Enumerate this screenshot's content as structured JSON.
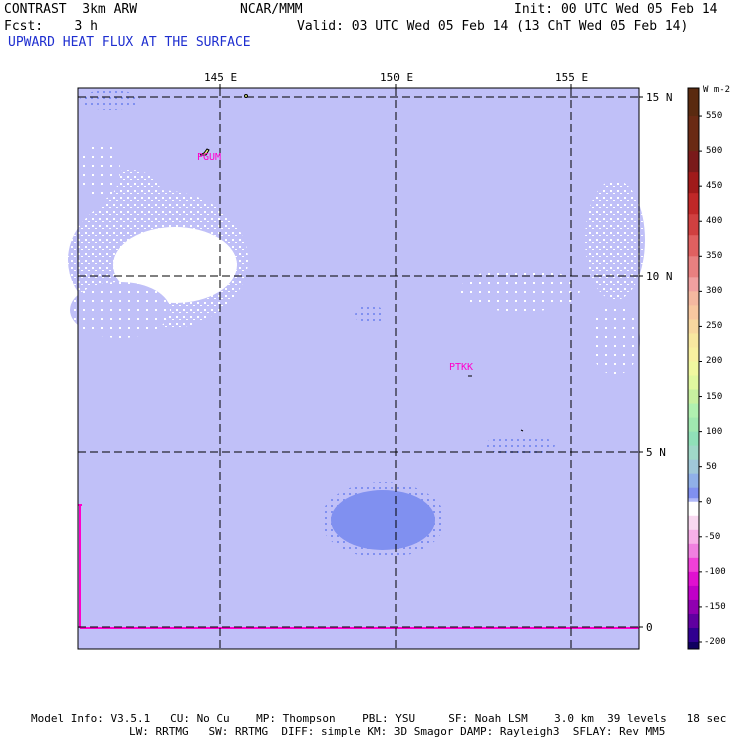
{
  "header": {
    "model": "CONTRAST  3km ARW",
    "center": "NCAR/MMM",
    "init": "Init: 00 UTC Wed 05 Feb 14",
    "fcst": "Fcst:    3 h",
    "valid": "Valid: 03 UTC Wed 05 Feb 14 (13 ChT Wed 05 Feb 14)",
    "field_title": "UPWARD HEAT FLUX AT THE SURFACE"
  },
  "map": {
    "lon_labels": [
      "145 E",
      "150 E",
      "155 E"
    ],
    "lat_labels": [
      "15 N",
      "10 N",
      "5 N",
      "0"
    ],
    "stations": [
      "PGUM",
      "PTKK"
    ],
    "colors": {
      "background": "#c0c0f8",
      "light_flux": "#ffffff",
      "moderate_flux": "#8090f0",
      "station_label": "#ff00cc",
      "border": "#ff00cc"
    }
  },
  "colorbar": {
    "units": "W m-2",
    "labels": [
      "550",
      "500",
      "450",
      "400",
      "350",
      "300",
      "250",
      "200",
      "150",
      "100",
      "50",
      "0",
      "-50",
      "-100",
      "-150",
      "-200"
    ]
  },
  "footer": {
    "line1": "Model Info: V3.5.1   CU: No Cu    MP: Thompson    PBL: YSU     SF: Noah LSM    3.0 km  39 levels   18 sec",
    "line2": "LW: RRTMG   SW: RRTMG  DIFF: simple KM: 3D Smagor DAMP: Rayleigh3  SFLAY: Rev MM5"
  }
}
